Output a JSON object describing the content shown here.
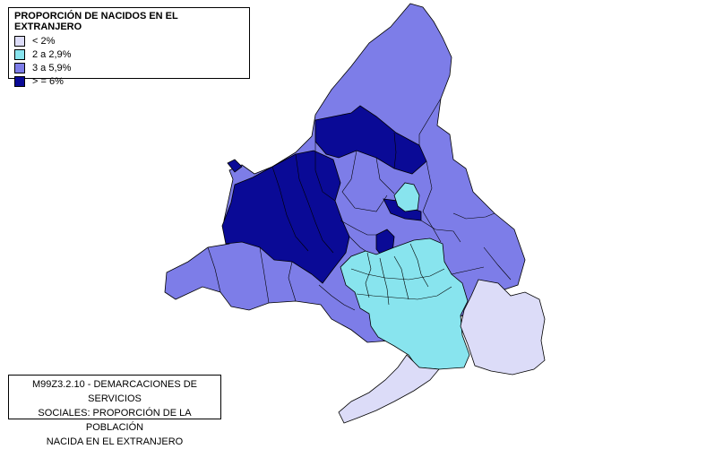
{
  "legend": {
    "title": "PROPORCIÓN DE NACIDOS EN EL EXTRANJERO",
    "items": [
      {
        "label": "< 2%",
        "color": "#dcdcf8"
      },
      {
        "label": "2 a 2,9%",
        "color": "#88e4ee"
      },
      {
        "label": "3 a 5,9%",
        "color": "#7d7de8"
      },
      {
        "label": "> = 6%",
        "color": "#0a0a96"
      }
    ]
  },
  "caption": {
    "line1": "M99Z3.2.10 - DEMARCACIONES DE SERVICIOS",
    "line2": "SOCIALES: PROPORCIÓN DE LA POBLACIÓN",
    "line3": "NACIDA EN EL EXTRANJERO"
  }
}
